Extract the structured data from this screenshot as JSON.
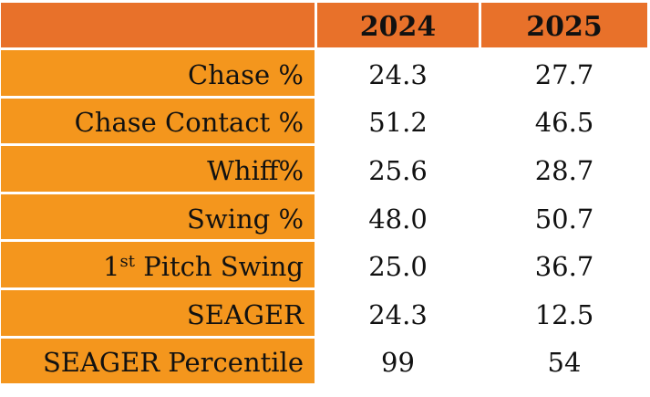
{
  "table": {
    "columns": [
      "",
      "2024",
      "2025"
    ],
    "rows": [
      {
        "label": "Chase %",
        "label_sup": "",
        "label_rest": "",
        "v2024": "24.3",
        "v2025": "27.7"
      },
      {
        "label": "Chase Contact %",
        "label_sup": "",
        "label_rest": "",
        "v2024": "51.2",
        "v2025": "46.5"
      },
      {
        "label": "Whiff%",
        "label_sup": "",
        "label_rest": "",
        "v2024": "25.6",
        "v2025": "28.7"
      },
      {
        "label": "Swing %",
        "label_sup": "",
        "label_rest": "",
        "v2024": "48.0",
        "v2025": "50.7"
      },
      {
        "label": "1",
        "label_sup": "st",
        "label_rest": " Pitch Swing",
        "v2024": "25.0",
        "v2025": "36.7"
      },
      {
        "label": "SEAGER",
        "label_sup": "",
        "label_rest": "",
        "v2024": "24.3",
        "v2025": "12.5"
      },
      {
        "label": "SEAGER Percentile",
        "label_sup": "",
        "label_rest": "",
        "v2024": "99",
        "v2025": "54"
      }
    ]
  },
  "colors": {
    "header_bg": "#E8712A",
    "label_bg": "#F4961D",
    "value_bg": "#FFFFFF"
  }
}
